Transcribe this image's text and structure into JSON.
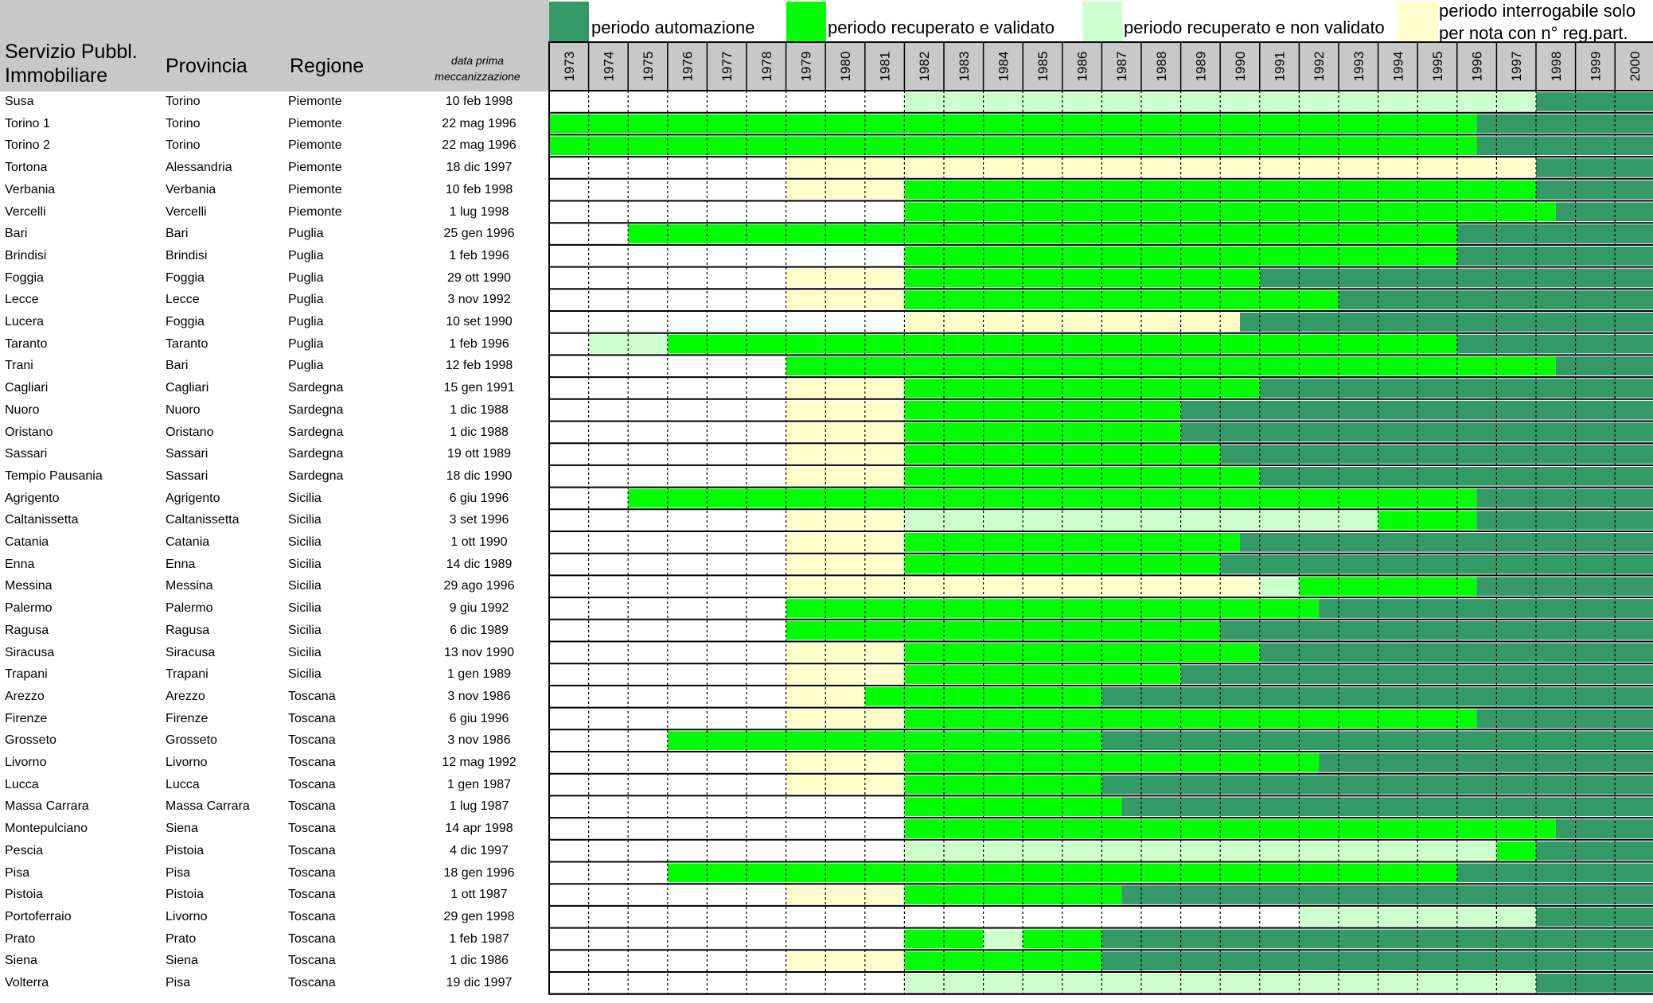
{
  "header": {
    "office": "Servizio Pubbl. Immobiliare",
    "office_line1": "Servizio Pubbl.",
    "office_line2": "Immobiliare",
    "province": "Provincia",
    "region": "Regione",
    "date_line1": "data prima",
    "date_line2": "meccanizzazione"
  },
  "legend": [
    {
      "key": "A",
      "label": "periodo automazione",
      "color": "#339966"
    },
    {
      "key": "V",
      "label": "periodo recuperato e validato",
      "color": "#00ff00"
    },
    {
      "key": "N",
      "label": "periodo recuperato e non validato",
      "color": "#ccffcc"
    },
    {
      "key": "P",
      "label": "periodo interrogabile solo per nota con n° reg.part.",
      "label_line1": "periodo interrogabile solo",
      "label_line2": "per nota con n° reg.part.",
      "color": "#ffffcc"
    }
  ],
  "colors": {
    "A": "#339966",
    "V": "#00ff00",
    "N": "#ccffcc",
    "P": "#ffffcc",
    "W": "#ffffff"
  },
  "chart_data": {
    "type": "table",
    "years": [
      "1973",
      "1974",
      "1975",
      "1976",
      "1977",
      "1978",
      "1979",
      "1980",
      "1981",
      "1982",
      "1983",
      "1984",
      "1985",
      "1986",
      "1987",
      "1988",
      "1989",
      "1990",
      "1991",
      "1992",
      "1993",
      "1994",
      "1995",
      "1996",
      "1997",
      "1998",
      "1999",
      "2000"
    ],
    "rows": [
      {
        "office": "Susa",
        "province": "Torino",
        "region": "Piemonte",
        "date": "10 feb 1998",
        "segments": [
          [
            1982,
            1998,
            "N"
          ],
          [
            1998,
            2001,
            "A"
          ]
        ]
      },
      {
        "office": "Torino 1",
        "province": "Torino",
        "region": "Piemonte",
        "date": "22 mag 1996",
        "segments": [
          [
            1973,
            1996.5,
            "V"
          ],
          [
            1996.5,
            2001,
            "A"
          ]
        ]
      },
      {
        "office": "Torino 2",
        "province": "Torino",
        "region": "Piemonte",
        "date": "22 mag 1996",
        "segments": [
          [
            1973,
            1996.5,
            "V"
          ],
          [
            1996.5,
            2001,
            "A"
          ]
        ]
      },
      {
        "office": "Tortona",
        "province": "Alessandria",
        "region": "Piemonte",
        "date": "18 dic 1997",
        "segments": [
          [
            1979,
            1998,
            "P"
          ],
          [
            1998,
            2001,
            "A"
          ]
        ]
      },
      {
        "office": "Verbania",
        "province": "Verbania",
        "region": "Piemonte",
        "date": "10 feb 1998",
        "segments": [
          [
            1979,
            1982,
            "P"
          ],
          [
            1982,
            1998,
            "V"
          ],
          [
            1998,
            2001,
            "A"
          ]
        ]
      },
      {
        "office": "Vercelli",
        "province": "Vercelli",
        "region": "Piemonte",
        "date": "1 lug 1998",
        "segments": [
          [
            1982,
            1998.5,
            "V"
          ],
          [
            1998.5,
            2001,
            "A"
          ]
        ]
      },
      {
        "office": "Bari",
        "province": "Bari",
        "region": "Puglia",
        "date": "25 gen 1996",
        "segments": [
          [
            1975,
            1996,
            "V"
          ],
          [
            1996,
            2001,
            "A"
          ]
        ]
      },
      {
        "office": "Brindisi",
        "province": "Brindisi",
        "region": "Puglia",
        "date": "1 feb 1996",
        "segments": [
          [
            1982,
            1996,
            "V"
          ],
          [
            1996,
            2001,
            "A"
          ]
        ]
      },
      {
        "office": "Foggia",
        "province": "Foggia",
        "region": "Puglia",
        "date": "29 ott 1990",
        "segments": [
          [
            1979,
            1982,
            "P"
          ],
          [
            1982,
            1991,
            "V"
          ],
          [
            1991,
            2001,
            "A"
          ]
        ]
      },
      {
        "office": "Lecce",
        "province": "Lecce",
        "region": "Puglia",
        "date": "3 nov 1992",
        "segments": [
          [
            1979,
            1982,
            "P"
          ],
          [
            1982,
            1993,
            "V"
          ],
          [
            1993,
            2001,
            "A"
          ]
        ]
      },
      {
        "office": "Lucera",
        "province": "Foggia",
        "region": "Puglia",
        "date": "10 set 1990",
        "segments": [
          [
            1982,
            1990.5,
            "P"
          ],
          [
            1990.5,
            2001,
            "A"
          ]
        ]
      },
      {
        "office": "Taranto",
        "province": "Taranto",
        "region": "Puglia",
        "date": "1 feb 1996",
        "segments": [
          [
            1974,
            1976,
            "N"
          ],
          [
            1976,
            1996,
            "V"
          ],
          [
            1996,
            2001,
            "A"
          ]
        ]
      },
      {
        "office": "Trani",
        "province": "Bari",
        "region": "Puglia",
        "date": "12 feb 1998",
        "segments": [
          [
            1979,
            1998.5,
            "V"
          ],
          [
            1998.5,
            2001,
            "A"
          ]
        ]
      },
      {
        "office": "Cagliari",
        "province": "Cagliari",
        "region": "Sardegna",
        "date": "15 gen 1991",
        "segments": [
          [
            1979,
            1982,
            "P"
          ],
          [
            1982,
            1991,
            "V"
          ],
          [
            1991,
            2001,
            "A"
          ]
        ]
      },
      {
        "office": "Nuoro",
        "province": "Nuoro",
        "region": "Sardegna",
        "date": "1 dic 1988",
        "segments": [
          [
            1979,
            1982,
            "P"
          ],
          [
            1982,
            1989,
            "V"
          ],
          [
            1989,
            2001,
            "A"
          ]
        ]
      },
      {
        "office": "Oristano",
        "province": "Oristano",
        "region": "Sardegna",
        "date": "1 dic 1988",
        "segments": [
          [
            1979,
            1982,
            "P"
          ],
          [
            1982,
            1989,
            "V"
          ],
          [
            1989,
            2001,
            "A"
          ]
        ]
      },
      {
        "office": "Sassari",
        "province": "Sassari",
        "region": "Sardegna",
        "date": "19 ott 1989",
        "segments": [
          [
            1979,
            1982,
            "P"
          ],
          [
            1982,
            1990,
            "V"
          ],
          [
            1990,
            2001,
            "A"
          ]
        ]
      },
      {
        "office": "Tempio Pausania",
        "province": "Sassari",
        "region": "Sardegna",
        "date": "18 dic 1990",
        "segments": [
          [
            1979,
            1982,
            "P"
          ],
          [
            1982,
            1991,
            "V"
          ],
          [
            1991,
            2001,
            "A"
          ]
        ]
      },
      {
        "office": "Agrigento",
        "province": "Agrigento",
        "region": "Sicilia",
        "date": "6 giu 1996",
        "segments": [
          [
            1975,
            1996.5,
            "V"
          ],
          [
            1996.5,
            2001,
            "A"
          ]
        ]
      },
      {
        "office": "Caltanissetta",
        "province": "Caltanissetta",
        "region": "Sicilia",
        "date": "3 set 1996",
        "segments": [
          [
            1979,
            1982,
            "P"
          ],
          [
            1982,
            1994,
            "N"
          ],
          [
            1994,
            1996.5,
            "V"
          ],
          [
            1996.5,
            2001,
            "A"
          ]
        ]
      },
      {
        "office": "Catania",
        "province": "Catania",
        "region": "Sicilia",
        "date": "1 ott 1990",
        "segments": [
          [
            1979,
            1982,
            "P"
          ],
          [
            1982,
            1990.5,
            "V"
          ],
          [
            1990.5,
            2001,
            "A"
          ]
        ]
      },
      {
        "office": "Enna",
        "province": "Enna",
        "region": "Sicilia",
        "date": "14 dic 1989",
        "segments": [
          [
            1979,
            1982,
            "P"
          ],
          [
            1982,
            1990,
            "V"
          ],
          [
            1990,
            2001,
            "A"
          ]
        ]
      },
      {
        "office": "Messina",
        "province": "Messina",
        "region": "Sicilia",
        "date": "29 ago 1996",
        "segments": [
          [
            1979,
            1991,
            "P"
          ],
          [
            1991,
            1992,
            "N"
          ],
          [
            1992,
            1996.5,
            "V"
          ],
          [
            1996.5,
            2001,
            "A"
          ]
        ]
      },
      {
        "office": "Palermo",
        "province": "Palermo",
        "region": "Sicilia",
        "date": "9 giu 1992",
        "segments": [
          [
            1979,
            1992.5,
            "V"
          ],
          [
            1992.5,
            2001,
            "A"
          ]
        ]
      },
      {
        "office": "Ragusa",
        "province": "Ragusa",
        "region": "Sicilia",
        "date": "6 dic 1989",
        "segments": [
          [
            1979,
            1990,
            "V"
          ],
          [
            1990,
            2001,
            "A"
          ]
        ]
      },
      {
        "office": "Siracusa",
        "province": "Siracusa",
        "region": "Sicilia",
        "date": "13 nov 1990",
        "segments": [
          [
            1979,
            1982,
            "P"
          ],
          [
            1982,
            1991,
            "V"
          ],
          [
            1991,
            2001,
            "A"
          ]
        ]
      },
      {
        "office": "Trapani",
        "province": "Trapani",
        "region": "Sicilia",
        "date": "1 gen 1989",
        "segments": [
          [
            1979,
            1982,
            "P"
          ],
          [
            1982,
            1989,
            "V"
          ],
          [
            1989,
            2001,
            "A"
          ]
        ]
      },
      {
        "office": "Arezzo",
        "province": "Arezzo",
        "region": "Toscana",
        "date": "3 nov 1986",
        "segments": [
          [
            1979,
            1981,
            "P"
          ],
          [
            1981,
            1987,
            "V"
          ],
          [
            1987,
            2001,
            "A"
          ]
        ]
      },
      {
        "office": "Firenze",
        "province": "Firenze",
        "region": "Toscana",
        "date": "6 giu 1996",
        "segments": [
          [
            1979,
            1982,
            "P"
          ],
          [
            1982,
            1996.5,
            "V"
          ],
          [
            1996.5,
            2001,
            "A"
          ]
        ]
      },
      {
        "office": "Grosseto",
        "province": "Grosseto",
        "region": "Toscana",
        "date": "3 nov 1986",
        "segments": [
          [
            1976,
            1987,
            "V"
          ],
          [
            1987,
            2001,
            "A"
          ]
        ]
      },
      {
        "office": "Livorno",
        "province": "Livorno",
        "region": "Toscana",
        "date": "12 mag 1992",
        "segments": [
          [
            1979,
            1982,
            "P"
          ],
          [
            1982,
            1992.5,
            "V"
          ],
          [
            1992.5,
            2001,
            "A"
          ]
        ]
      },
      {
        "office": "Lucca",
        "province": "Lucca",
        "region": "Toscana",
        "date": "1 gen 1987",
        "segments": [
          [
            1979,
            1982,
            "P"
          ],
          [
            1982,
            1987,
            "V"
          ],
          [
            1987,
            2001,
            "A"
          ]
        ]
      },
      {
        "office": "Massa Carrara",
        "province": "Massa Carrara",
        "region": "Toscana",
        "date": "1 lug 1987",
        "segments": [
          [
            1982,
            1987.5,
            "V"
          ],
          [
            1987.5,
            2001,
            "A"
          ]
        ]
      },
      {
        "office": "Montepulciano",
        "province": "Siena",
        "region": "Toscana",
        "date": "14 apr 1998",
        "segments": [
          [
            1982,
            1998.5,
            "V"
          ],
          [
            1998.5,
            2001,
            "A"
          ]
        ]
      },
      {
        "office": "Pescia",
        "province": "Pistoia",
        "region": "Toscana",
        "date": "4 dic 1997",
        "segments": [
          [
            1982,
            1997,
            "N"
          ],
          [
            1997,
            1998,
            "V"
          ],
          [
            1998,
            2001,
            "A"
          ]
        ]
      },
      {
        "office": "Pisa",
        "province": "Pisa",
        "region": "Toscana",
        "date": "18 gen 1996",
        "segments": [
          [
            1976,
            1996,
            "V"
          ],
          [
            1996,
            2001,
            "A"
          ]
        ]
      },
      {
        "office": "Pistoia",
        "province": "Pistoia",
        "region": "Toscana",
        "date": "1 ott 1987",
        "segments": [
          [
            1979,
            1982,
            "P"
          ],
          [
            1982,
            1987.5,
            "V"
          ],
          [
            1987.5,
            2001,
            "A"
          ]
        ]
      },
      {
        "office": "Portoferraio",
        "province": "Livorno",
        "region": "Toscana",
        "date": "29 gen 1998",
        "segments": [
          [
            1992,
            1998,
            "N"
          ],
          [
            1998,
            2001,
            "A"
          ]
        ]
      },
      {
        "office": "Prato",
        "province": "Prato",
        "region": "Toscana",
        "date": "1 feb 1987",
        "segments": [
          [
            1982,
            1984,
            "V"
          ],
          [
            1984,
            1985,
            "N"
          ],
          [
            1985,
            1987,
            "V"
          ],
          [
            1987,
            2001,
            "A"
          ]
        ]
      },
      {
        "office": "Siena",
        "province": "Siena",
        "region": "Toscana",
        "date": "1 dic 1986",
        "segments": [
          [
            1979,
            1982,
            "P"
          ],
          [
            1982,
            1987,
            "V"
          ],
          [
            1987,
            2001,
            "A"
          ]
        ]
      },
      {
        "office": "Volterra",
        "province": "Pisa",
        "region": "Toscana",
        "date": "19 dic 1997",
        "segments": [
          [
            1982,
            1998,
            "N"
          ],
          [
            1998,
            2001,
            "A"
          ]
        ]
      }
    ]
  }
}
